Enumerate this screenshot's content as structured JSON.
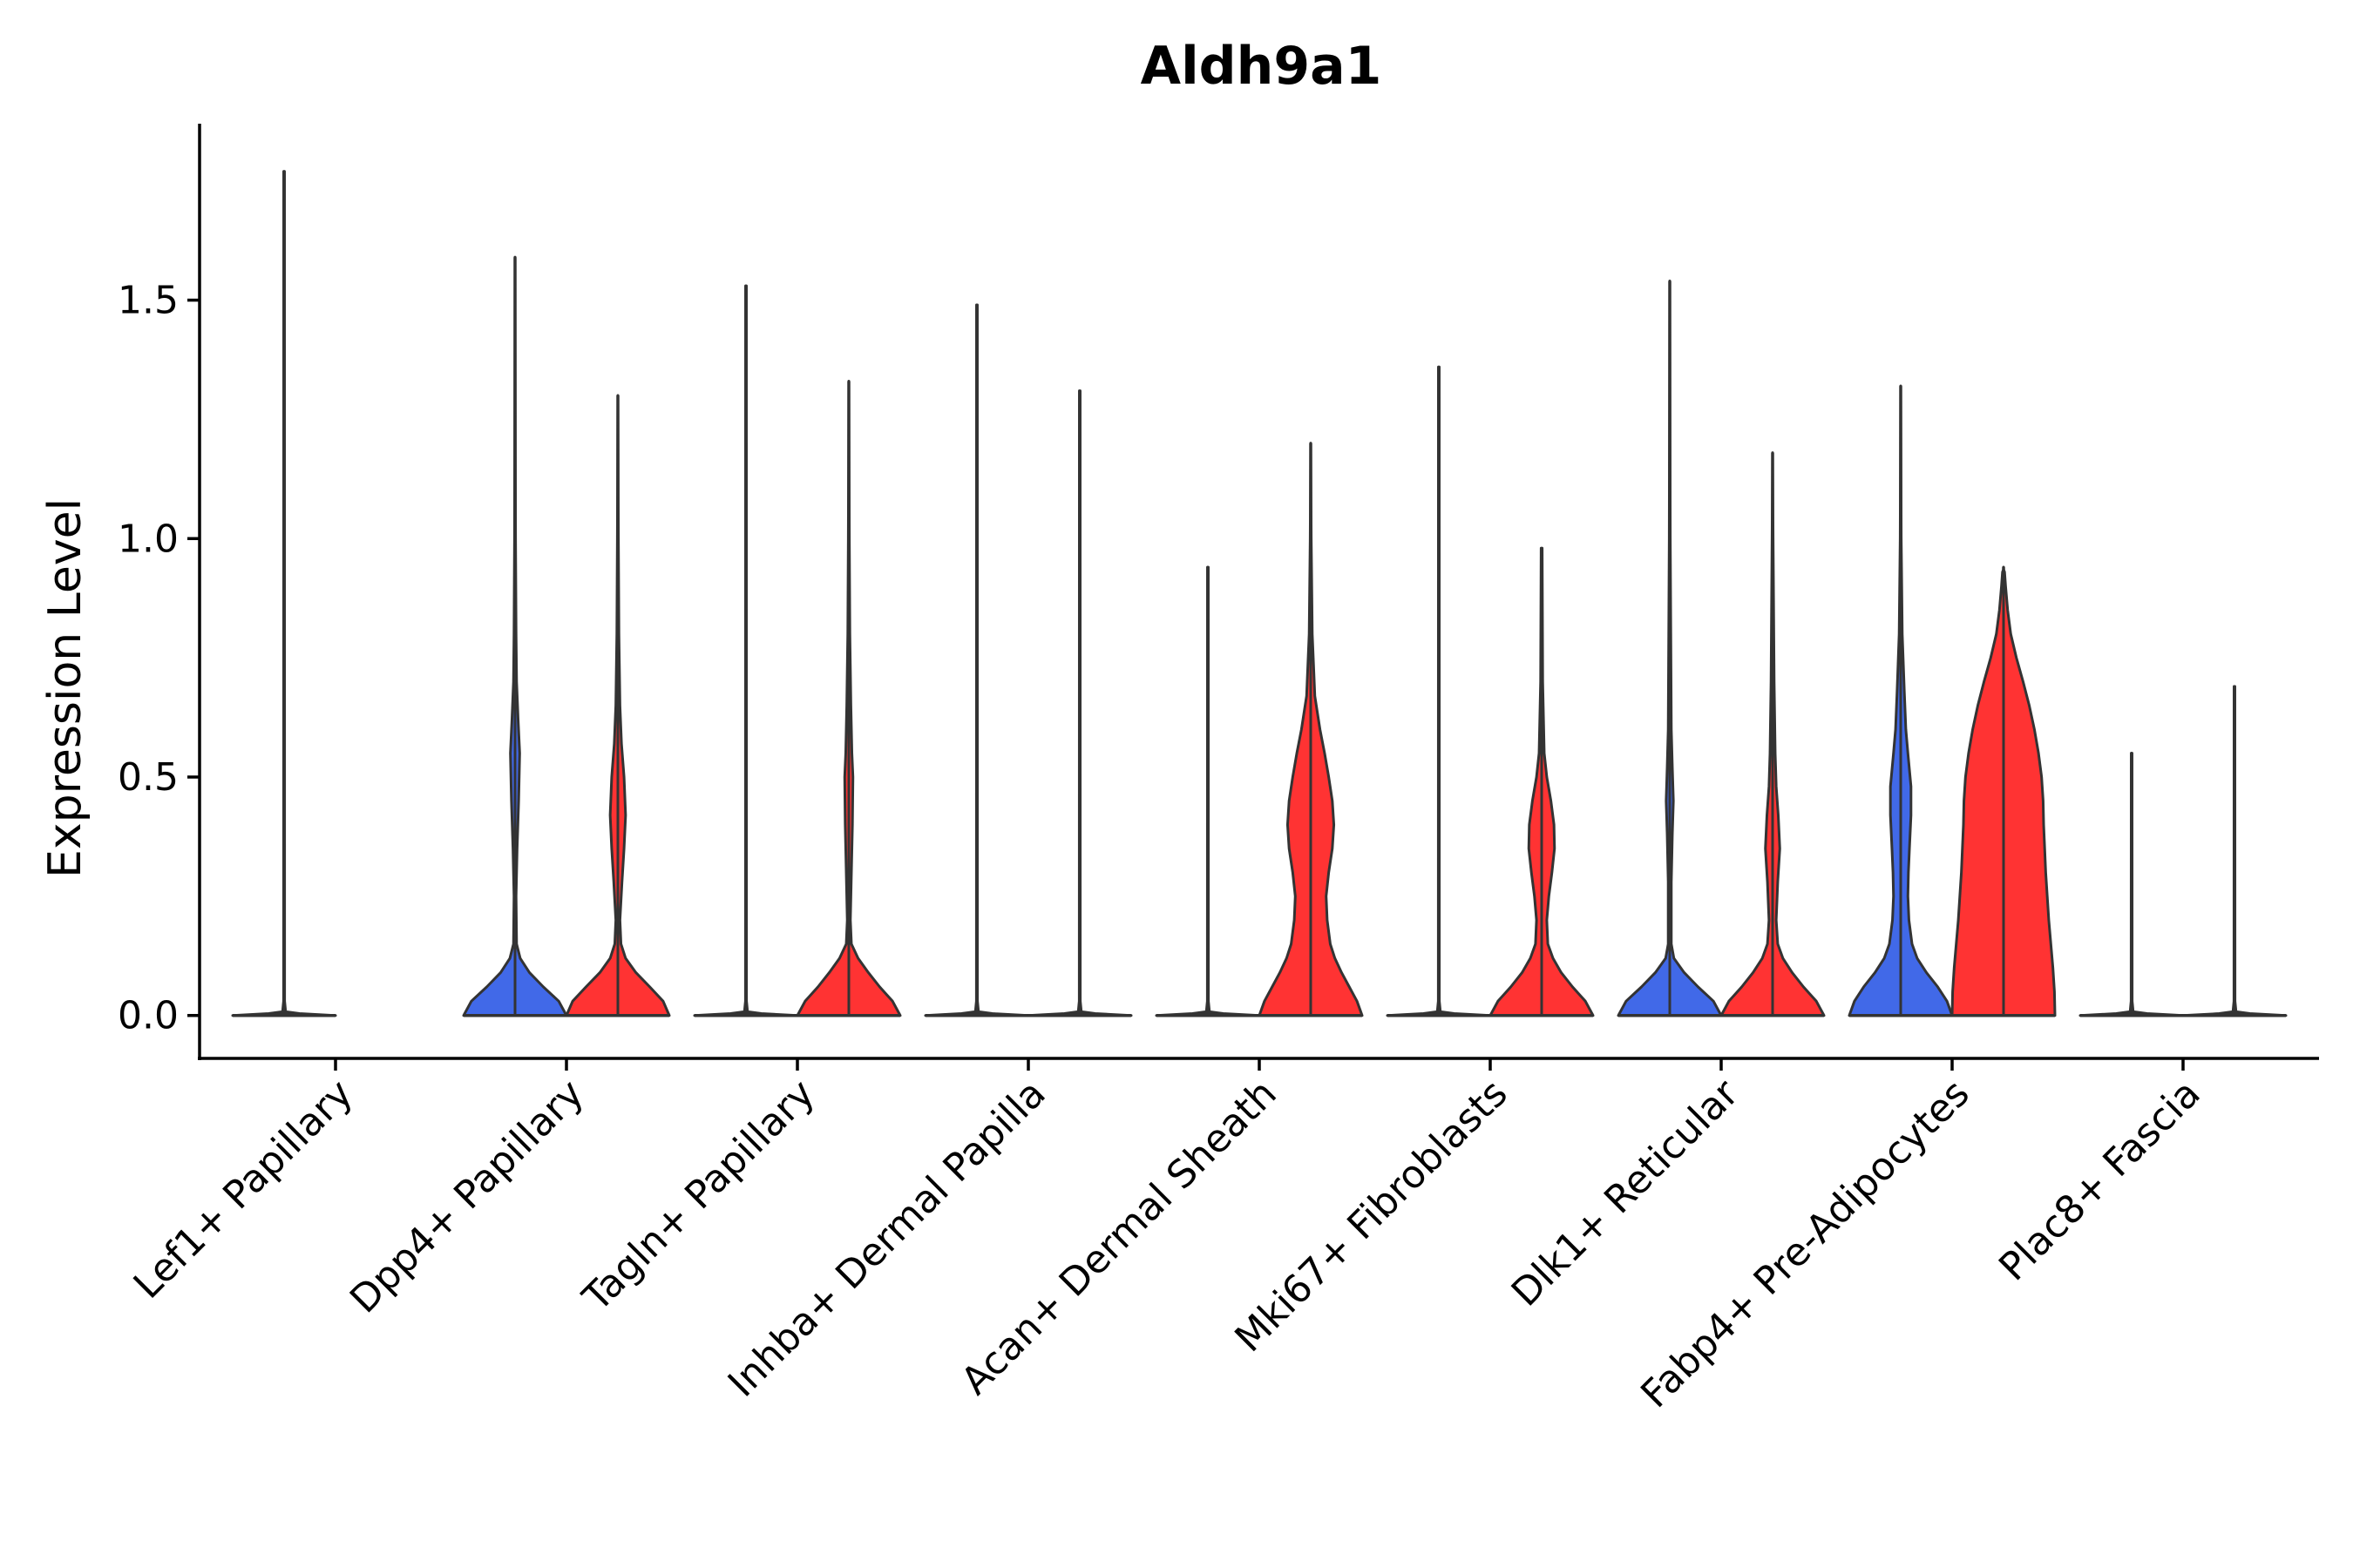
{
  "chart_data": {
    "type": "violin",
    "title": "Aldh9a1",
    "xlabel": "",
    "ylabel": "Expression Level",
    "ylim": [
      -0.09,
      1.87
    ],
    "yticks": [
      0.0,
      0.5,
      1.0,
      1.5
    ],
    "ytick_labels": [
      "0.0",
      "0.5",
      "1.0",
      "1.5"
    ],
    "grid": false,
    "legend": "none",
    "colors": {
      "blue": "#4169E8",
      "red": "#FF3333",
      "outline": "#333333"
    },
    "categories": [
      "Lef1+ Papillary",
      "Dpp4+ Papillary",
      "Tagln+ Papillary",
      "Inhba+ Dermal Papilla",
      "Acan+ Dermal Sheath",
      "Mki67+ Fibroblasts",
      "Dlk1+ Reticular",
      "Fabp4+ Pre-Adipocytes",
      "Plac8+ Fascia"
    ],
    "series": [
      {
        "name": "left-half",
        "color": "blue",
        "max": [
          1.77,
          1.59,
          1.53,
          1.49,
          0.94,
          1.36,
          1.54,
          1.32,
          0.55
        ],
        "profile": [
          "flat",
          [
            [
              0,
              1.0
            ],
            [
              0.03,
              0.85
            ],
            [
              0.06,
              0.55
            ],
            [
              0.09,
              0.28
            ],
            [
              0.12,
              0.1
            ],
            [
              0.15,
              0.03
            ],
            [
              0.25,
              0.02
            ],
            [
              0.35,
              0.04
            ],
            [
              0.45,
              0.07
            ],
            [
              0.55,
              0.09
            ],
            [
              0.62,
              0.06
            ],
            [
              0.7,
              0.03
            ],
            [
              0.8,
              0.02
            ],
            [
              1.0,
              0.01
            ]
          ],
          "flat",
          "flat",
          "flat",
          "flat",
          [
            [
              0,
              1.0
            ],
            [
              0.03,
              0.85
            ],
            [
              0.06,
              0.55
            ],
            [
              0.09,
              0.28
            ],
            [
              0.12,
              0.08
            ],
            [
              0.15,
              0.03
            ],
            [
              0.28,
              0.03
            ],
            [
              0.38,
              0.05
            ],
            [
              0.45,
              0.07
            ],
            [
              0.52,
              0.05
            ],
            [
              0.6,
              0.03
            ],
            [
              0.8,
              0.02
            ],
            [
              1.0,
              0.01
            ]
          ],
          [
            [
              0,
              1.0
            ],
            [
              0.03,
              0.9
            ],
            [
              0.06,
              0.72
            ],
            [
              0.09,
              0.5
            ],
            [
              0.12,
              0.32
            ],
            [
              0.15,
              0.22
            ],
            [
              0.2,
              0.16
            ],
            [
              0.25,
              0.14
            ],
            [
              0.3,
              0.15
            ],
            [
              0.35,
              0.17
            ],
            [
              0.42,
              0.2
            ],
            [
              0.48,
              0.2
            ],
            [
              0.55,
              0.14
            ],
            [
              0.6,
              0.1
            ],
            [
              0.68,
              0.07
            ],
            [
              0.8,
              0.03
            ],
            [
              1.0,
              0.01
            ]
          ],
          "flat"
        ]
      },
      {
        "name": "right-half",
        "color": "red",
        "max": [
          0,
          1.3,
          1.33,
          1.31,
          1.2,
          0.98,
          1.18,
          0.94,
          0.69
        ],
        "profile": [
          "none",
          [
            [
              0,
              1.0
            ],
            [
              0.03,
              0.88
            ],
            [
              0.06,
              0.62
            ],
            [
              0.09,
              0.35
            ],
            [
              0.12,
              0.15
            ],
            [
              0.15,
              0.06
            ],
            [
              0.2,
              0.04
            ],
            [
              0.28,
              0.08
            ],
            [
              0.35,
              0.12
            ],
            [
              0.42,
              0.15
            ],
            [
              0.5,
              0.12
            ],
            [
              0.57,
              0.07
            ],
            [
              0.65,
              0.04
            ],
            [
              0.8,
              0.02
            ],
            [
              1.0,
              0.01
            ]
          ],
          [
            [
              0,
              1.0
            ],
            [
              0.03,
              0.85
            ],
            [
              0.06,
              0.6
            ],
            [
              0.09,
              0.38
            ],
            [
              0.12,
              0.18
            ],
            [
              0.15,
              0.05
            ],
            [
              0.2,
              0.03
            ],
            [
              0.3,
              0.05
            ],
            [
              0.4,
              0.07
            ],
            [
              0.5,
              0.08
            ],
            [
              0.55,
              0.06
            ],
            [
              0.65,
              0.04
            ],
            [
              0.8,
              0.02
            ],
            [
              1.0,
              0.01
            ]
          ],
          "flat",
          [
            [
              0,
              1.0
            ],
            [
              0.03,
              0.9
            ],
            [
              0.06,
              0.75
            ],
            [
              0.09,
              0.6
            ],
            [
              0.12,
              0.47
            ],
            [
              0.15,
              0.38
            ],
            [
              0.2,
              0.32
            ],
            [
              0.25,
              0.3
            ],
            [
              0.3,
              0.35
            ],
            [
              0.35,
              0.42
            ],
            [
              0.4,
              0.45
            ],
            [
              0.45,
              0.42
            ],
            [
              0.5,
              0.35
            ],
            [
              0.55,
              0.27
            ],
            [
              0.6,
              0.18
            ],
            [
              0.67,
              0.08
            ],
            [
              0.8,
              0.03
            ],
            [
              1.0,
              0.01
            ]
          ],
          [
            [
              0,
              1.0
            ],
            [
              0.03,
              0.85
            ],
            [
              0.06,
              0.6
            ],
            [
              0.09,
              0.38
            ],
            [
              0.12,
              0.22
            ],
            [
              0.15,
              0.12
            ],
            [
              0.2,
              0.1
            ],
            [
              0.25,
              0.14
            ],
            [
              0.3,
              0.2
            ],
            [
              0.35,
              0.25
            ],
            [
              0.4,
              0.24
            ],
            [
              0.45,
              0.18
            ],
            [
              0.5,
              0.1
            ],
            [
              0.55,
              0.05
            ],
            [
              0.7,
              0.02
            ],
            [
              1.0,
              0.01
            ]
          ],
          [
            [
              0,
              1.0
            ],
            [
              0.03,
              0.85
            ],
            [
              0.06,
              0.6
            ],
            [
              0.09,
              0.38
            ],
            [
              0.12,
              0.2
            ],
            [
              0.15,
              0.1
            ],
            [
              0.2,
              0.07
            ],
            [
              0.28,
              0.1
            ],
            [
              0.35,
              0.14
            ],
            [
              0.42,
              0.11
            ],
            [
              0.48,
              0.07
            ],
            [
              0.55,
              0.05
            ],
            [
              0.7,
              0.03
            ],
            [
              1.0,
              0.01
            ]
          ],
          [
            [
              0,
              1.0
            ],
            [
              0.05,
              0.99
            ],
            [
              0.1,
              0.96
            ],
            [
              0.15,
              0.92
            ],
            [
              0.2,
              0.88
            ],
            [
              0.25,
              0.85
            ],
            [
              0.3,
              0.82
            ],
            [
              0.35,
              0.8
            ],
            [
              0.4,
              0.78
            ],
            [
              0.45,
              0.77
            ],
            [
              0.5,
              0.74
            ],
            [
              0.55,
              0.68
            ],
            [
              0.6,
              0.6
            ],
            [
              0.65,
              0.5
            ],
            [
              0.7,
              0.38
            ],
            [
              0.75,
              0.25
            ],
            [
              0.8,
              0.14
            ],
            [
              0.85,
              0.08
            ],
            [
              0.9,
              0.04
            ],
            [
              0.93,
              0.02
            ],
            [
              0.935,
              0.0
            ]
          ],
          "flat"
        ]
      }
    ]
  }
}
